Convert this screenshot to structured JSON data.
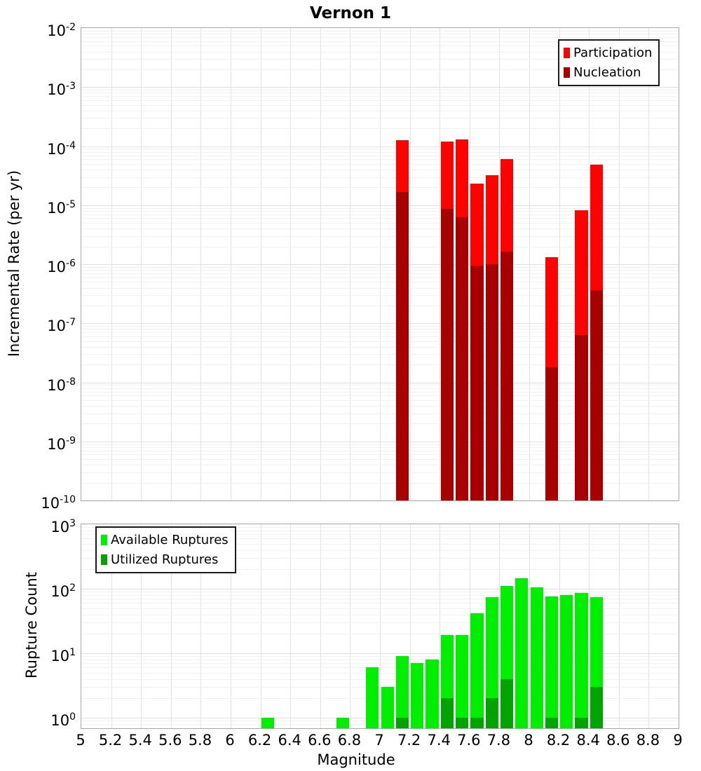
{
  "title": "Vernon 1",
  "axes": {
    "x_label": "Magnitude",
    "x_ticks": [
      "5",
      "5.2",
      "5.4",
      "5.6",
      "5.8",
      "6",
      "6.2",
      "6.4",
      "6.6",
      "6.8",
      "7",
      "7.2",
      "7.4",
      "7.6",
      "7.8",
      "8",
      "8.2",
      "8.4",
      "8.6",
      "8.8",
      "9"
    ],
    "top_y_label": "Incremental Rate (per yr)",
    "top_y_tick_exponents": [
      -2,
      -3,
      -4,
      -5,
      -6,
      -7,
      -8,
      -9,
      -10
    ],
    "bottom_y_label": "Rupture Count",
    "bottom_y_tick_exponents": [
      3,
      2,
      1,
      0
    ]
  },
  "colors": {
    "participation": "#fb0301",
    "nucleation": "#a80000",
    "available": "#00ee00",
    "utilized": "#00a400",
    "grid_major": "#e0e0e0",
    "grid_minor": "#f0f0f0",
    "panel_border": "#a6a6a6"
  },
  "legend_top": {
    "items": [
      {
        "label": "Participation",
        "color": "#fb0301"
      },
      {
        "label": "Nucleation",
        "color": "#a80000"
      }
    ]
  },
  "legend_bottom": {
    "items": [
      {
        "label": "Available Ruptures",
        "color": "#00ee00"
      },
      {
        "label": "Utilized Ruptures",
        "color": "#00a400"
      }
    ]
  },
  "chart_data": [
    {
      "type": "bar",
      "panel": "incremental-rate",
      "title": "Vernon 1",
      "xlabel": "Magnitude",
      "ylabel": "Incremental Rate (per yr)",
      "xlim": [
        5,
        9
      ],
      "ylim": [
        1e-10,
        0.01
      ],
      "yscale": "log",
      "bin_width": 0.1,
      "grid": true,
      "legend_position": "top-right",
      "series": [
        {
          "name": "Participation",
          "color": "#fb0301",
          "x": [
            7.15,
            7.45,
            7.55,
            7.65,
            7.75,
            7.85,
            8.15,
            8.35,
            8.45
          ],
          "values": [
            0.000125,
            0.00012,
            0.00013,
            2.3e-05,
            3.2e-05,
            6e-05,
            1.3e-06,
            8.2e-06,
            4.9e-05
          ]
        },
        {
          "name": "Nucleation",
          "color": "#a80000",
          "x": [
            7.15,
            7.45,
            7.55,
            7.65,
            7.75,
            7.85,
            8.15,
            8.35,
            8.45
          ],
          "values": [
            1.65e-05,
            8.7e-06,
            6.2e-06,
            9.5e-07,
            1e-06,
            1.65e-06,
            1.8e-08,
            6.3e-08,
            3.6e-07
          ]
        }
      ]
    },
    {
      "type": "bar",
      "panel": "rupture-count",
      "xlabel": "Magnitude",
      "ylabel": "Rupture Count",
      "xlim": [
        5,
        9
      ],
      "ylim": [
        0.67,
        1000
      ],
      "yscale": "log",
      "bin_width": 0.1,
      "grid": true,
      "legend_position": "top-left",
      "series": [
        {
          "name": "Available Ruptures",
          "color": "#00ee00",
          "x": [
            6.25,
            6.75,
            6.95,
            7.05,
            7.15,
            7.25,
            7.35,
            7.45,
            7.55,
            7.65,
            7.75,
            7.85,
            7.95,
            8.05,
            8.15,
            8.25,
            8.35,
            8.45
          ],
          "values": [
            1,
            1,
            6,
            3,
            9,
            7,
            8,
            19,
            19,
            42,
            75,
            110,
            145,
            104,
            76,
            80,
            86,
            75
          ]
        },
        {
          "name": "Utilized Ruptures",
          "color": "#00a400",
          "x": [
            7.15,
            7.45,
            7.55,
            7.65,
            7.75,
            7.85,
            8.15,
            8.35,
            8.45
          ],
          "values": [
            1,
            2,
            1,
            1,
            2,
            4,
            1,
            1,
            3
          ]
        }
      ]
    }
  ]
}
